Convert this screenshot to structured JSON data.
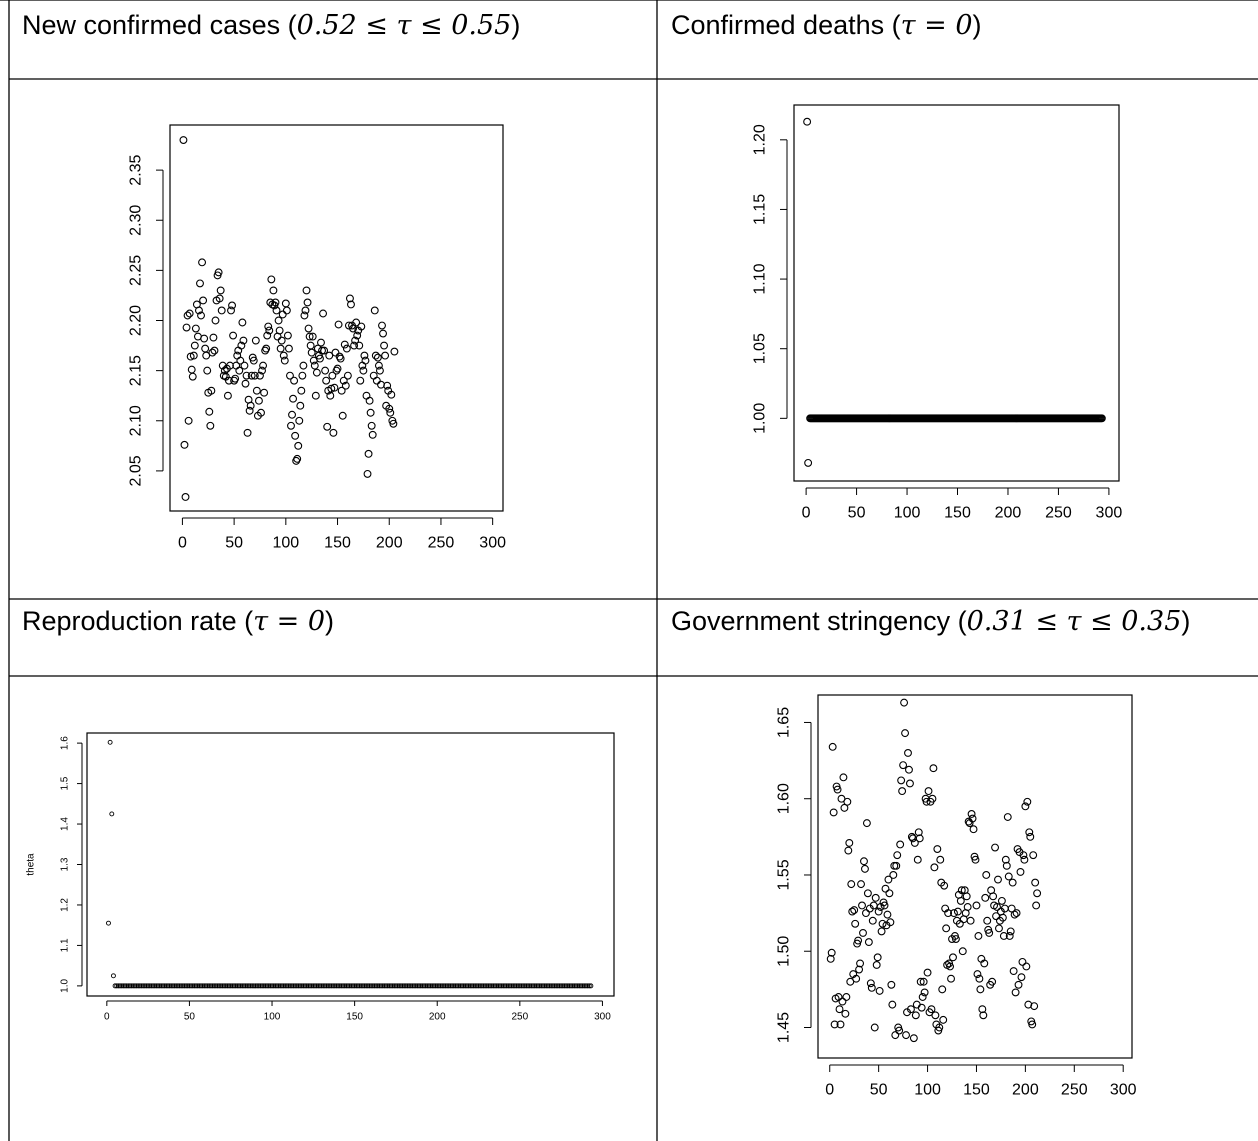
{
  "headers": [
    {
      "pre": "New confirmed cases (",
      "sym": "0.52 ≤ τ ≤ 0.55",
      "post": ")"
    },
    {
      "pre": "Confirmed deaths (",
      "sym": "τ = 0",
      "post": ")"
    },
    {
      "pre": "Reproduction rate (",
      "sym": "τ = 0",
      "post": ")"
    },
    {
      "pre": "Government stringency (",
      "sym": "0.31 ≤ τ ≤ 0.35",
      "post": ")"
    }
  ],
  "chart_data": [
    {
      "type": "scatter",
      "title": "New confirmed cases (0.52 ≤ τ ≤ 0.55)",
      "xlabel": "",
      "ylabel": "",
      "xlim": [
        -12,
        310
      ],
      "ylim": [
        2.01,
        2.395
      ],
      "xticks": [
        0,
        50,
        100,
        150,
        200,
        250,
        300
      ],
      "yticks": [
        2.05,
        2.1,
        2.15,
        2.2,
        2.25,
        2.3,
        2.35
      ],
      "ytick_labels": [
        "2.05",
        "2.10",
        "2.15",
        "2.20",
        "2.25",
        "2.30",
        "2.35"
      ],
      "y": [
        2.38,
        2.076,
        2.024,
        2.193,
        2.205,
        2.1,
        2.207,
        2.164,
        2.151,
        2.144,
        2.165,
        2.175,
        2.192,
        2.216,
        2.184,
        2.21,
        2.237,
        2.205,
        2.258,
        2.22,
        2.182,
        2.172,
        2.165,
        2.15,
        2.128,
        2.109,
        2.095,
        2.13,
        2.168,
        2.183,
        2.17,
        2.2,
        2.22,
        2.245,
        2.248,
        2.222,
        2.23,
        2.21,
        2.155,
        2.145,
        2.15,
        2.144,
        2.152,
        2.125,
        2.14,
        2.155,
        2.21,
        2.215,
        2.185,
        2.14,
        2.142,
        2.155,
        2.165,
        2.17,
        2.15,
        2.16,
        2.175,
        2.198,
        2.18,
        2.155,
        2.137,
        2.145,
        2.088,
        2.121,
        2.11,
        2.115,
        2.145,
        2.163,
        2.16,
        2.145,
        2.18,
        2.13,
        2.105,
        2.12,
        2.145,
        2.108,
        2.15,
        2.155,
        2.128,
        2.17,
        2.172,
        2.185,
        2.194,
        2.19,
        2.218,
        2.241,
        2.216,
        2.23,
        2.215,
        2.218,
        2.21,
        2.184,
        2.2,
        2.19,
        2.172,
        2.18,
        2.206,
        2.165,
        2.16,
        2.217,
        2.21,
        2.185,
        2.172,
        2.145,
        2.095,
        2.106,
        2.122,
        2.14,
        2.085,
        2.06,
        2.062,
        2.075,
        2.1,
        2.115,
        2.13,
        2.145,
        2.155,
        2.205,
        2.21,
        2.23,
        2.218,
        2.192,
        2.184,
        2.175,
        2.168,
        2.184,
        2.16,
        2.155,
        2.125,
        2.148,
        2.172,
        2.165,
        2.162,
        2.178,
        2.17,
        2.207,
        2.17,
        2.15,
        2.14,
        2.094,
        2.13,
        2.165,
        2.125,
        2.132,
        2.145,
        2.088,
        2.133,
        2.168,
        2.15,
        2.152,
        2.196,
        2.164,
        2.162,
        2.13,
        2.105,
        2.14,
        2.176,
        2.135,
        2.172,
        2.145,
        2.195,
        2.222,
        2.216,
        2.195,
        2.192,
        2.175,
        2.18,
        2.198,
        2.185,
        2.19,
        2.175,
        2.14,
        2.194,
        2.155,
        2.15,
        2.165,
        2.16,
        2.125,
        2.047,
        2.067,
        2.12,
        2.108,
        2.095,
        2.086,
        2.145,
        2.21,
        2.165,
        2.14,
        2.163,
        2.155,
        2.15,
        2.136,
        2.195,
        2.187,
        2.175,
        2.165,
        2.115,
        2.135,
        2.13,
        2.112,
        2.108,
        2.126,
        2.1,
        2.097,
        2.169
      ]
    },
    {
      "type": "scatter",
      "title": "Confirmed deaths (τ = 0)",
      "xlabel": "",
      "ylabel": "",
      "xlim": [
        -12,
        310
      ],
      "ylim": [
        0.955,
        1.225
      ],
      "xticks": [
        0,
        50,
        100,
        150,
        200,
        250,
        300
      ],
      "yticks": [
        1.0,
        1.05,
        1.1,
        1.15,
        1.2
      ],
      "ytick_labels": [
        "1.00",
        "1.05",
        "1.10",
        "1.15",
        "1.20"
      ],
      "y": [
        1.213,
        0.968
      ],
      "constant_run": {
        "x_from": 4,
        "x_to": 293,
        "y": 1.0
      }
    },
    {
      "type": "scatter",
      "title": "Reproduction rate (τ = 0)",
      "xlabel": "",
      "ylabel": "theta",
      "xlim": [
        -12,
        307
      ],
      "ylim": [
        0.975,
        1.625
      ],
      "xticks": [
        0,
        50,
        100,
        150,
        200,
        250,
        300
      ],
      "yticks": [
        1.0,
        1.1,
        1.2,
        1.3,
        1.4,
        1.5,
        1.6
      ],
      "ytick_labels": [
        "1.0",
        "1.1",
        "1.2",
        "1.3",
        "1.4",
        "1.5",
        "1.6"
      ],
      "y": [
        1.155,
        1.602,
        1.425,
        1.025
      ],
      "constant_run": {
        "x_from": 5,
        "x_to": 293,
        "y": 1.0
      }
    },
    {
      "type": "scatter",
      "title": "Government stringency (0.31 ≤ τ ≤ 0.35)",
      "xlabel": "",
      "ylabel": "",
      "xlim": [
        -12,
        309
      ],
      "ylim": [
        1.43,
        1.668
      ],
      "xticks": [
        0,
        50,
        100,
        150,
        200,
        250,
        300
      ],
      "yticks": [
        1.45,
        1.5,
        1.55,
        1.6,
        1.65
      ],
      "ytick_labels": [
        "1.45",
        "1.50",
        "1.55",
        "1.60",
        "1.65"
      ],
      "y": [
        1.495,
        1.499,
        1.634,
        1.591,
        1.452,
        1.469,
        1.608,
        1.606,
        1.47,
        1.462,
        1.452,
        1.6,
        1.467,
        1.614,
        1.594,
        1.459,
        1.47,
        1.598,
        1.566,
        1.571,
        1.48,
        1.544,
        1.526,
        1.485,
        1.527,
        1.518,
        1.482,
        1.505,
        1.507,
        1.488,
        1.492,
        1.544,
        1.53,
        1.512,
        1.559,
        1.554,
        1.525,
        1.584,
        1.538,
        1.506,
        1.528,
        1.479,
        1.476,
        1.52,
        1.53,
        1.45,
        1.535,
        1.491,
        1.496,
        1.526,
        1.474,
        1.529,
        1.513,
        1.518,
        1.532,
        1.53,
        1.541,
        1.517,
        1.524,
        1.547,
        1.538,
        1.519,
        1.478,
        1.465,
        1.55,
        1.556,
        1.445,
        1.556,
        1.563,
        1.45,
        1.448,
        1.57,
        1.612,
        1.605,
        1.622,
        1.663,
        1.643,
        1.445,
        1.46,
        1.63,
        1.619,
        1.61,
        1.462,
        1.575,
        1.574,
        1.443,
        1.571,
        1.458,
        1.465,
        1.56,
        1.578,
        1.574,
        1.48,
        1.463,
        1.47,
        1.48,
        1.473,
        1.6,
        1.598,
        1.486,
        1.605,
        1.46,
        1.598,
        1.462,
        1.6,
        1.62,
        1.555,
        1.458,
        1.452,
        1.567,
        1.448,
        1.45,
        1.56,
        1.545,
        1.475,
        1.455,
        1.543,
        1.528,
        1.515,
        1.491,
        1.525,
        1.492,
        1.49,
        1.482,
        1.508,
        1.496,
        1.525,
        1.51,
        1.508,
        1.52,
        1.526,
        1.537,
        1.518,
        1.533,
        1.54,
        1.5,
        1.521,
        1.54,
        1.525,
        1.536,
        1.529,
        1.585,
        1.584,
        1.52,
        1.59,
        1.587,
        1.58,
        1.562,
        1.56,
        1.53,
        1.485,
        1.51,
        1.482,
        1.475,
        1.495,
        1.462,
        1.458,
        1.492,
        1.535,
        1.55,
        1.52,
        1.514,
        1.512,
        1.478,
        1.54,
        1.48,
        1.536,
        1.53,
        1.568,
        1.523,
        1.529,
        1.547,
        1.515,
        1.52,
        1.526,
        1.533,
        1.522,
        1.51,
        1.528,
        1.56,
        1.556,
        1.588,
        1.549,
        1.51,
        1.513,
        1.528,
        1.545,
        1.487,
        1.524,
        1.473,
        1.525,
        1.567,
        1.478,
        1.565,
        1.552,
        1.483,
        1.493,
        1.563,
        1.56,
        1.595,
        1.49,
        1.598,
        1.465,
        1.578,
        1.575,
        1.454,
        1.452,
        1.563,
        1.464,
        1.545,
        1.53,
        1.538
      ]
    }
  ]
}
